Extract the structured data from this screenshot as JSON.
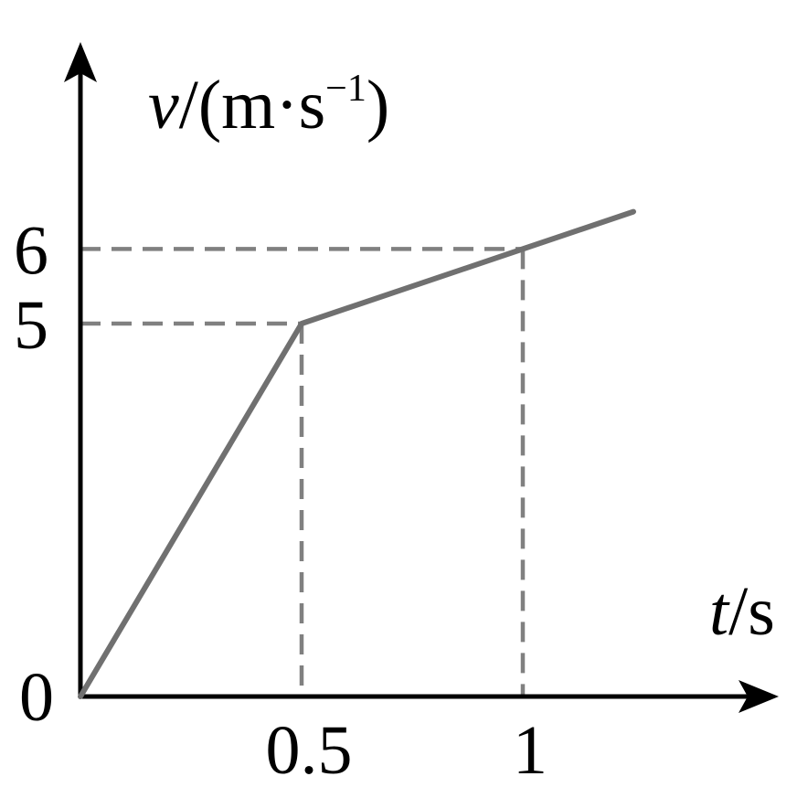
{
  "chart_data": {
    "type": "line",
    "x_axis": {
      "variable": "t",
      "unit": "s",
      "ticks": [
        {
          "value": 0.5,
          "label": "0.5"
        },
        {
          "value": 1,
          "label": "1"
        }
      ]
    },
    "y_axis": {
      "variable": "v",
      "unit_open": "/(m·s",
      "unit_exp": "−1",
      "unit_close": ")",
      "ticks": [
        {
          "value": 5,
          "label": "5"
        },
        {
          "value": 6,
          "label": "6"
        }
      ]
    },
    "origin_label": "0",
    "xlim": [
      0,
      1.6
    ],
    "ylim": [
      0,
      7.6
    ],
    "series": [
      {
        "points": [
          {
            "x": 0,
            "y": 0
          },
          {
            "x": 0.5,
            "y": 5
          },
          {
            "x": 1,
            "y": 6
          },
          {
            "x": 1.25,
            "y": 6.5
          }
        ],
        "color": "#707070"
      }
    ],
    "guides": [
      {
        "x": 0.5,
        "y": 5
      },
      {
        "x": 1,
        "y": 6
      }
    ],
    "guide_color": "#808080",
    "axis_color": "#000000"
  }
}
